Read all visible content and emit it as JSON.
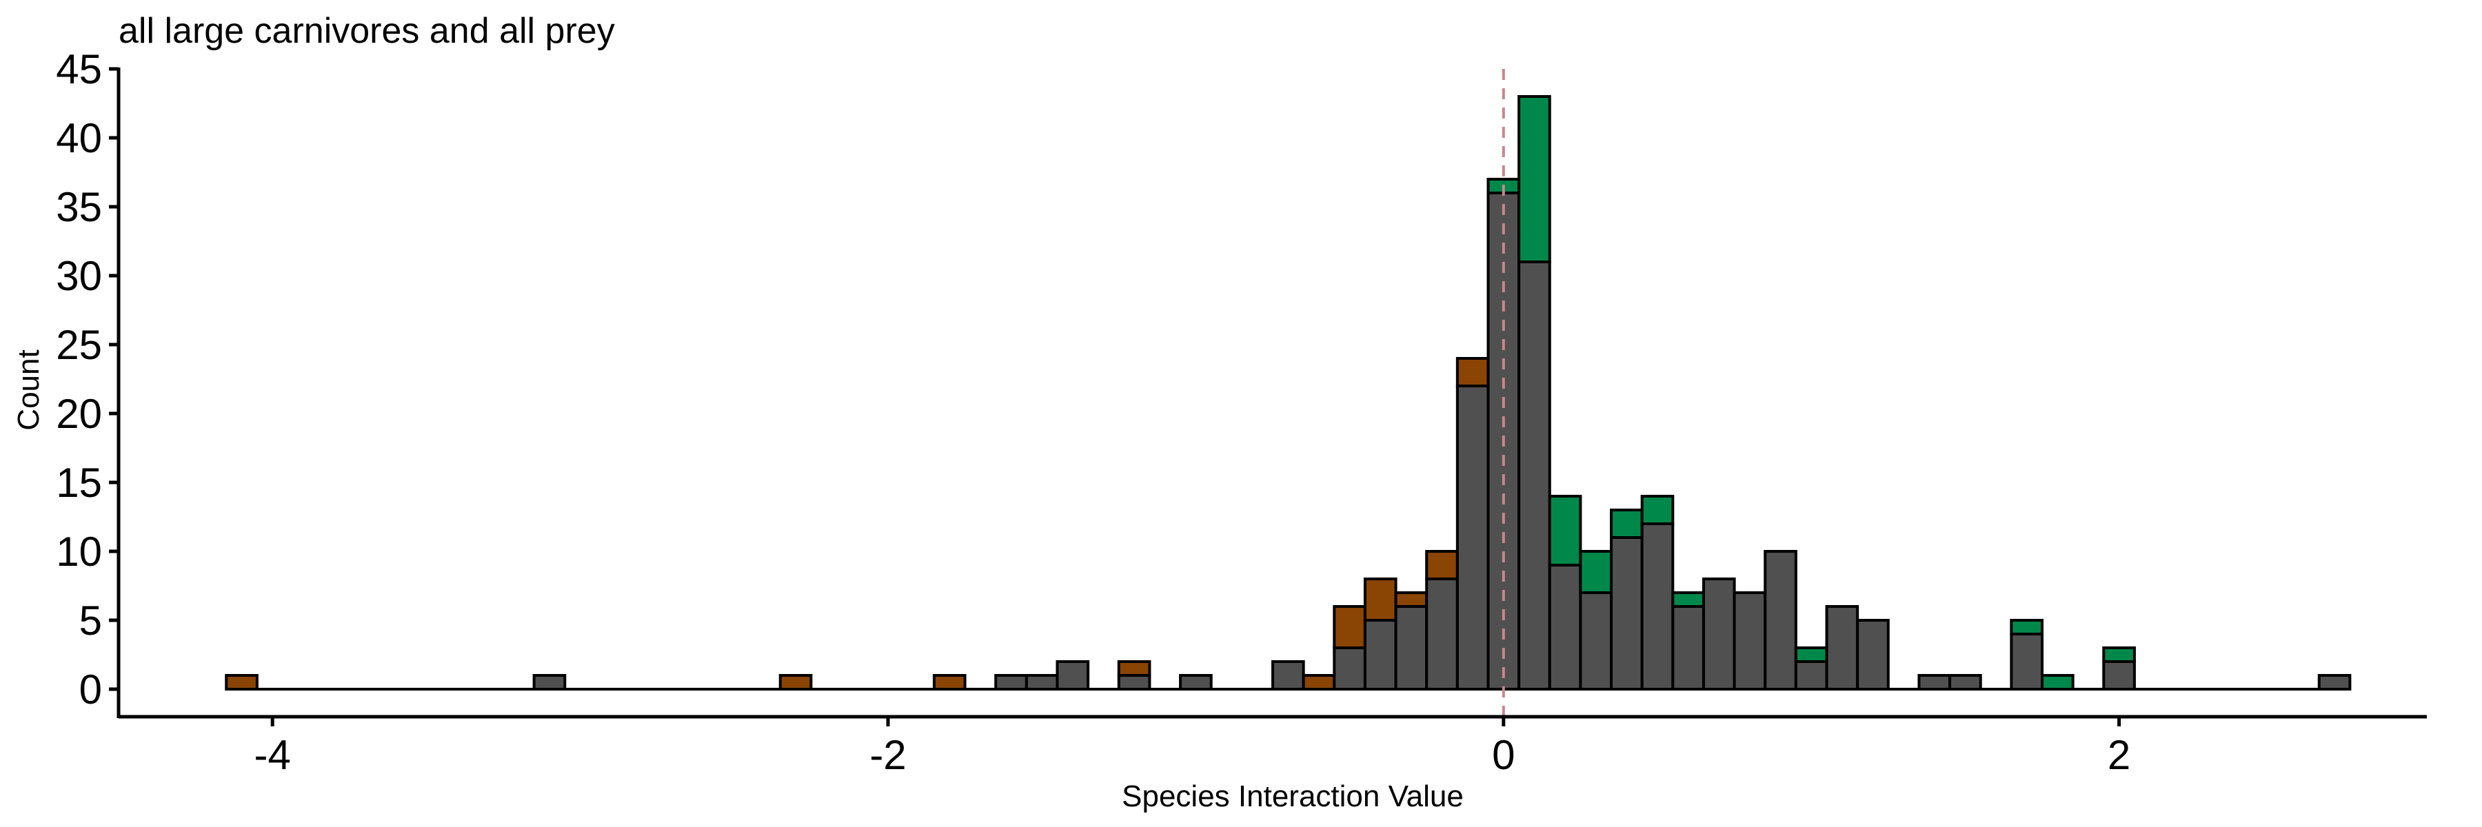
{
  "chart_data": {
    "type": "bar",
    "title": "all large carnivores and all prey",
    "xlabel": "Species Interaction Value",
    "ylabel": "Count",
    "xlim": [
      -4.5,
      3.0
    ],
    "ylim": [
      -2,
      45
    ],
    "xticks": [
      -4,
      -2,
      0,
      2
    ],
    "xtick_labels": [
      "-4",
      "-2",
      "0",
      "2"
    ],
    "yticks": [
      0,
      5,
      10,
      15,
      20,
      25,
      30,
      35,
      40,
      45
    ],
    "ytick_labels": [
      "0",
      "5",
      "10",
      "15",
      "20",
      "25",
      "30",
      "35",
      "40",
      "45"
    ],
    "bin_width": 0.1,
    "stacked": true,
    "grid": false,
    "reference_line": {
      "x": 0,
      "style": "dashed",
      "color": "#c9868e"
    },
    "colors": {
      "gray": "#505050",
      "brown": "#8a4404",
      "green": "#00884a"
    },
    "x": [
      -4.1,
      -4.0,
      -3.9,
      -3.8,
      -3.7,
      -3.6,
      -3.5,
      -3.4,
      -3.3,
      -3.2,
      -3.1,
      -3.0,
      -2.9,
      -2.8,
      -2.7,
      -2.6,
      -2.5,
      -2.4,
      -2.3,
      -2.2,
      -2.1,
      -2.0,
      -1.9,
      -1.8,
      -1.7,
      -1.6,
      -1.5,
      -1.4,
      -1.3,
      -1.2,
      -1.1,
      -1.0,
      -0.9,
      -0.8,
      -0.7,
      -0.6,
      -0.5,
      -0.4,
      -0.3,
      -0.2,
      -0.1,
      0.0,
      0.1,
      0.2,
      0.3,
      0.4,
      0.5,
      0.6,
      0.7,
      0.8,
      0.9,
      1.0,
      1.1,
      1.2,
      1.3,
      1.4,
      1.5,
      1.6,
      1.7,
      1.8,
      1.9,
      2.0,
      2.1,
      2.2,
      2.3,
      2.4,
      2.5,
      2.6,
      2.7
    ],
    "series": [
      {
        "color": "#505050",
        "values": [
          0,
          0,
          0,
          0,
          0,
          0,
          0,
          0,
          0,
          0,
          1,
          0,
          0,
          0,
          0,
          0,
          0,
          0,
          0,
          0,
          0,
          0,
          0,
          0,
          0,
          1,
          1,
          2,
          0,
          1,
          0,
          1,
          0,
          0,
          2,
          0,
          3,
          5,
          6,
          8,
          22,
          36,
          31,
          9,
          7,
          11,
          12,
          6,
          8,
          7,
          10,
          2,
          6,
          5,
          0,
          1,
          1,
          0,
          4,
          0,
          0,
          2,
          0,
          0,
          0,
          0,
          0,
          0,
          1
        ]
      },
      {
        "color": "#8a4404",
        "values": [
          1,
          0,
          0,
          0,
          0,
          0,
          0,
          0,
          0,
          0,
          0,
          0,
          0,
          0,
          0,
          0,
          0,
          0,
          1,
          0,
          0,
          0,
          0,
          1,
          0,
          0,
          0,
          0,
          0,
          1,
          0,
          0,
          0,
          0,
          0,
          1,
          3,
          3,
          1,
          2,
          2,
          0,
          0,
          0,
          0,
          0,
          0,
          0,
          0,
          0,
          0,
          0,
          0,
          0,
          0,
          0,
          0,
          0,
          0,
          0,
          0,
          0,
          0,
          0,
          0,
          0,
          0,
          0,
          0
        ]
      },
      {
        "color": "#00884a",
        "values": [
          0,
          0,
          0,
          0,
          0,
          0,
          0,
          0,
          0,
          0,
          0,
          0,
          0,
          0,
          0,
          0,
          0,
          0,
          0,
          0,
          0,
          0,
          0,
          0,
          0,
          0,
          0,
          0,
          0,
          0,
          0,
          0,
          0,
          0,
          0,
          0,
          0,
          0,
          0,
          0,
          0,
          1,
          12,
          5,
          3,
          2,
          2,
          1,
          0,
          0,
          0,
          1,
          0,
          0,
          0,
          0,
          0,
          0,
          1,
          1,
          0,
          1,
          0,
          0,
          0,
          0,
          0,
          0,
          0
        ]
      }
    ]
  }
}
